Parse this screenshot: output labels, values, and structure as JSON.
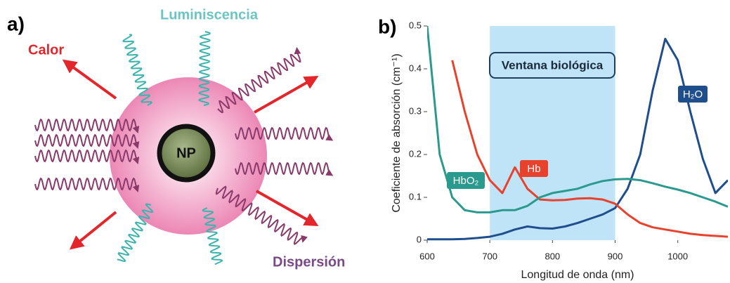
{
  "panel_a": {
    "label": "a)",
    "luminescence": "Luminiscencia",
    "heat": "Calor",
    "particle": "NP",
    "scattering": "Dispersión"
  },
  "chart_data": {
    "type": "line",
    "panel_label": "b)",
    "x_label": "Longitud de onda (nm)",
    "y_label": "Coeficiente de absorción (cm⁻¹)",
    "x": [
      600,
      620,
      640,
      660,
      680,
      700,
      720,
      740,
      760,
      780,
      800,
      820,
      840,
      860,
      880,
      900,
      920,
      940,
      960,
      980,
      1000,
      1020,
      1040,
      1060,
      1080
    ],
    "series": [
      {
        "name": "H₂O",
        "color": "#1f4e8c",
        "values": [
          0.002,
          0.002,
          0.002,
          0.003,
          0.005,
          0.008,
          0.015,
          0.025,
          0.032,
          0.028,
          0.027,
          0.032,
          0.04,
          0.05,
          0.06,
          0.075,
          0.12,
          0.2,
          0.35,
          0.47,
          0.42,
          0.3,
          0.19,
          0.11,
          0.14
        ]
      },
      {
        "name": "Hb",
        "color": "#e8412c",
        "values": [
          null,
          null,
          0.42,
          0.3,
          0.2,
          0.14,
          0.11,
          0.17,
          0.12,
          0.095,
          0.093,
          0.094,
          0.097,
          0.098,
          0.095,
          0.085,
          0.06,
          0.04,
          0.03,
          0.025,
          0.02,
          0.015,
          0.012,
          0.01,
          0.008
        ]
      },
      {
        "name": "HbO₂",
        "color": "#2a9a8f",
        "values": [
          0.5,
          0.2,
          0.1,
          0.07,
          0.065,
          0.065,
          0.07,
          0.07,
          0.08,
          0.1,
          0.11,
          0.115,
          0.12,
          0.13,
          0.138,
          0.142,
          0.143,
          0.14,
          0.133,
          0.125,
          0.118,
          0.11,
          0.1,
          0.09,
          0.078
        ]
      }
    ],
    "window": {
      "label": "Ventana biológica",
      "range": [
        700,
        900
      ],
      "color": "#bfe3f7"
    },
    "xlim": [
      600,
      1080
    ],
    "xticks": [
      600,
      700,
      800,
      900,
      1000
    ],
    "ylim": [
      0,
      0.5
    ],
    "yticks": [
      0,
      0.1,
      0.2,
      0.3,
      0.4,
      0.5
    ],
    "grid": false
  }
}
